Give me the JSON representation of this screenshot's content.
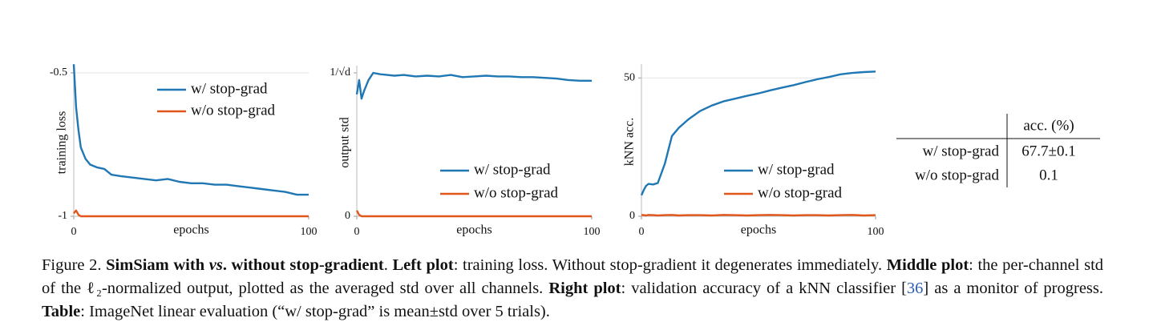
{
  "chart_data": [
    {
      "type": "line",
      "ylabel": "training loss",
      "xlabel": "epochs",
      "x": [
        0,
        1,
        2,
        3,
        5,
        7,
        10,
        13,
        16,
        20,
        25,
        30,
        35,
        40,
        45,
        50,
        55,
        60,
        65,
        70,
        75,
        80,
        85,
        90,
        95,
        100
      ],
      "xlim": [
        0,
        100
      ],
      "xticks": [
        0,
        100
      ],
      "ylim": [
        -1,
        -0.475
      ],
      "yticks": [
        -0.5,
        -1
      ],
      "grid": true,
      "legend": "upper right",
      "series": [
        {
          "name": "w/ stop-grad",
          "color": "#1f77b4",
          "values": [
            -0.47,
            -0.62,
            -0.7,
            -0.76,
            -0.8,
            -0.82,
            -0.83,
            -0.835,
            -0.855,
            -0.86,
            -0.865,
            -0.87,
            -0.875,
            -0.87,
            -0.88,
            -0.885,
            -0.885,
            -0.89,
            -0.89,
            -0.895,
            -0.9,
            -0.905,
            -0.91,
            -0.915,
            -0.925,
            -0.925
          ]
        },
        {
          "name": "w/o stop-grad",
          "color": "#e0561b",
          "values": [
            -0.99,
            -0.98,
            -0.995,
            -1,
            -1,
            -1,
            -1,
            -1,
            -1,
            -1,
            -1,
            -1,
            -1,
            -1,
            -1,
            -1,
            -1,
            -1,
            -1,
            -1,
            -1,
            -1,
            -1,
            -1,
            -1,
            -1
          ]
        }
      ]
    },
    {
      "type": "line",
      "ylabel": "output std",
      "xlabel": "epochs",
      "x": [
        0,
        1,
        2,
        3,
        5,
        7,
        10,
        13,
        16,
        20,
        25,
        30,
        35,
        40,
        45,
        50,
        55,
        60,
        65,
        70,
        75,
        80,
        85,
        90,
        95,
        100
      ],
      "xlim": [
        0,
        100
      ],
      "xticks": [
        0,
        100
      ],
      "ylim": [
        0,
        1.05
      ],
      "yticks": [
        0,
        {
          "value": 1,
          "label": "1/√d"
        }
      ],
      "grid": false,
      "legend": "lower right",
      "series": [
        {
          "name": "w/ stop-grad",
          "color": "#1f77b4",
          "values": [
            0.85,
            0.95,
            0.82,
            0.87,
            0.95,
            1.0,
            0.99,
            0.985,
            0.98,
            0.985,
            0.975,
            0.98,
            0.975,
            0.985,
            0.97,
            0.975,
            0.98,
            0.975,
            0.975,
            0.97,
            0.97,
            0.965,
            0.96,
            0.95,
            0.945,
            0.945
          ]
        },
        {
          "name": "w/o stop-grad",
          "color": "#e0561b",
          "values": [
            0.04,
            0.01,
            0,
            0,
            0,
            0,
            0,
            0,
            0,
            0,
            0,
            0,
            0,
            0,
            0,
            0,
            0,
            0,
            0,
            0,
            0,
            0,
            0,
            0,
            0,
            0
          ]
        }
      ]
    },
    {
      "type": "line",
      "ylabel": "kNN acc.",
      "xlabel": "epochs",
      "x": [
        0,
        1,
        2,
        3,
        5,
        7,
        10,
        13,
        16,
        20,
        25,
        30,
        35,
        40,
        45,
        50,
        55,
        60,
        65,
        70,
        75,
        80,
        85,
        90,
        95,
        100
      ],
      "xlim": [
        0,
        100
      ],
      "xticks": [
        0,
        100
      ],
      "ylim": [
        0,
        55
      ],
      "yticks": [
        0,
        50
      ],
      "grid": true,
      "legend": "lower right",
      "series": [
        {
          "name": "w/ stop-grad",
          "color": "#1f77b4",
          "values": [
            7.6,
            9.5,
            11,
            11.7,
            11.5,
            12,
            19,
            29,
            32,
            35,
            38,
            40,
            41.5,
            42.5,
            43.5,
            44.4,
            45.5,
            46.5,
            47.4,
            48.5,
            49.5,
            50.3,
            51.3,
            51.8,
            52.1,
            52.3
          ]
        },
        {
          "name": "w/o stop-grad",
          "color": "#e0561b",
          "values": [
            0.5,
            0.4,
            0.3,
            0.5,
            0.4,
            0.3,
            0.4,
            0.5,
            0.3,
            0.4,
            0.4,
            0.3,
            0.5,
            0.4,
            0.3,
            0.4,
            0.5,
            0.4,
            0.3,
            0.4,
            0.4,
            0.3,
            0.4,
            0.5,
            0.3,
            0.4
          ]
        }
      ]
    }
  ],
  "table": {
    "columns": [
      "acc. (%)"
    ],
    "rows": [
      [
        "w/ stop-grad",
        "67.7±0.1"
      ],
      [
        "w/o stop-grad",
        "0.1"
      ]
    ]
  },
  "caption": [
    {
      "text": "Figure 2. "
    },
    {
      "text": "SimSiam with ",
      "bold": true
    },
    {
      "text": "vs",
      "bold": true,
      "italic": true
    },
    {
      "text": ". without stop-gradient",
      "bold": true
    },
    {
      "text": ". "
    },
    {
      "text": "Left plot",
      "bold": true
    },
    {
      "text": ": training loss. Without stop-gradient it degenerates immediately. "
    },
    {
      "text": "Middle plot",
      "bold": true
    },
    {
      "text": ": the per-channel std of the ℓ₂-normalized output, plotted as the averaged std over all channels. "
    },
    {
      "text": "Right plot",
      "bold": true
    },
    {
      "text": ": validation accuracy of a kNN classifier ["
    },
    {
      "text": "36",
      "link": true
    },
    {
      "text": "] as a monitor of progress. "
    },
    {
      "text": "Table",
      "bold": true
    },
    {
      "text": ": ImageNet linear evaluation (“w/ stop-grad” is mean±std over 5 trials)."
    }
  ]
}
